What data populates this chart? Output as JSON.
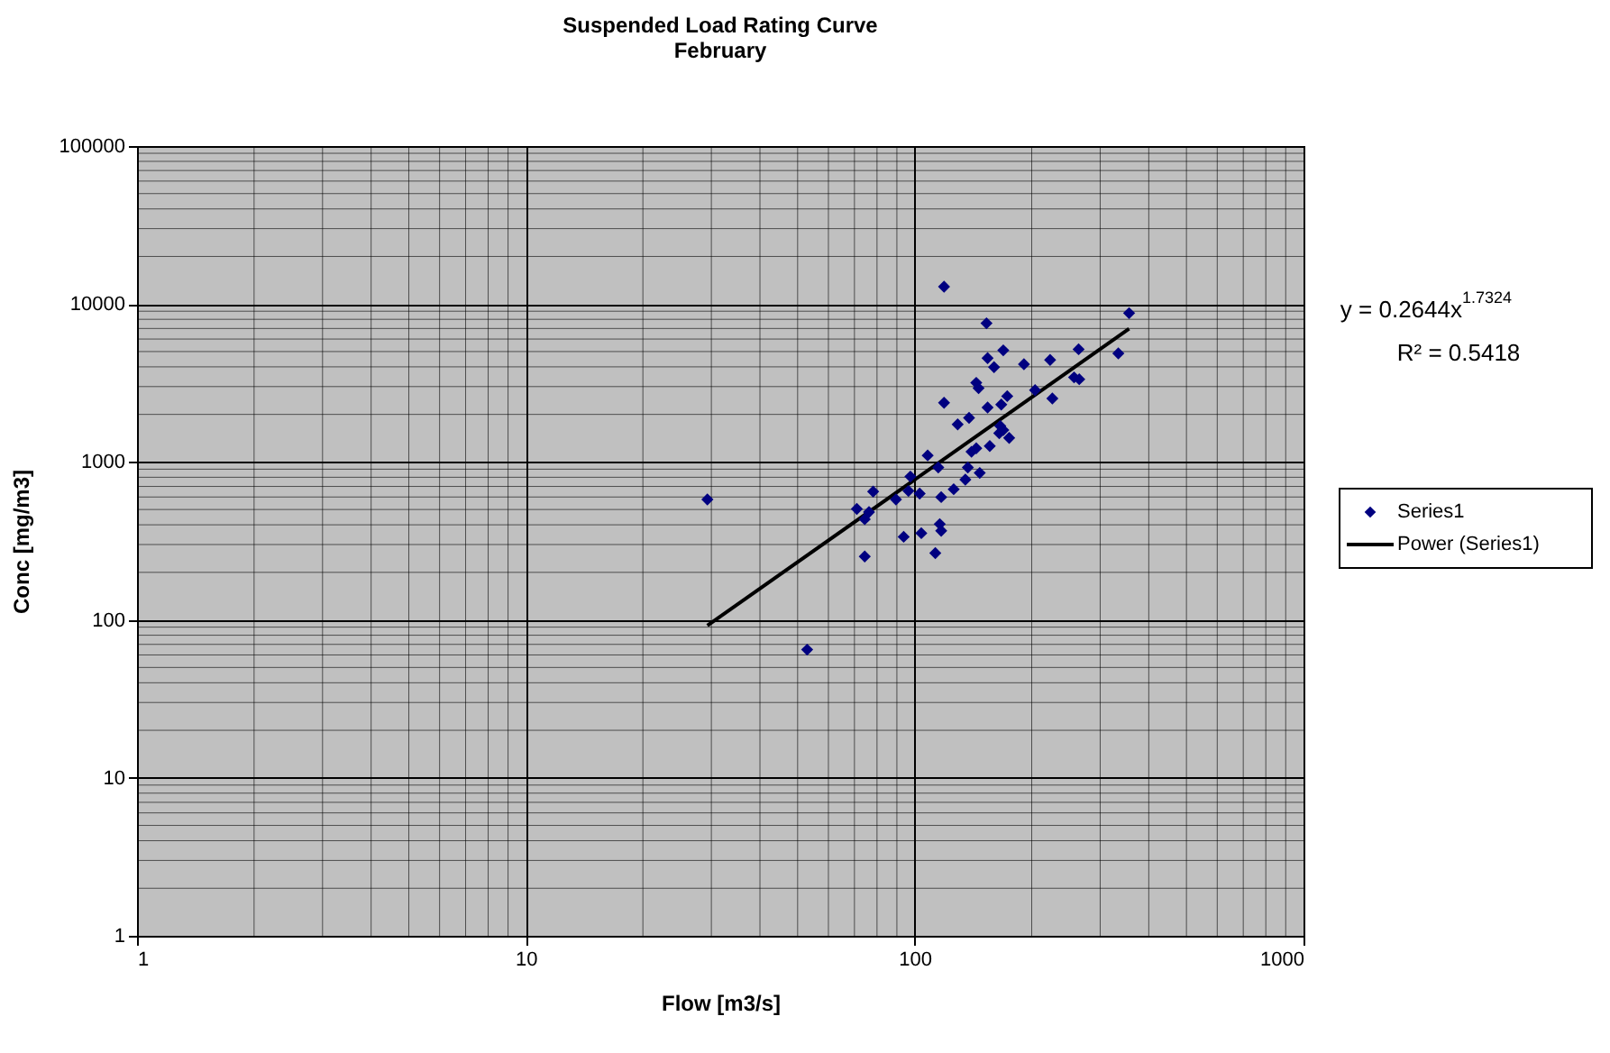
{
  "chart_data": {
    "type": "scatter",
    "title": "Suspended Load Rating Curve",
    "subtitle": "February",
    "xlabel": "Flow [m3/s]",
    "ylabel": "Conc [mg/m3]",
    "log": "xy",
    "grid": true,
    "legend": "right",
    "xlim": [
      1,
      1000
    ],
    "xticks": [
      1,
      10,
      100,
      1000
    ],
    "ylim": [
      1,
      100000
    ],
    "yticks": [
      1,
      10,
      100,
      1000,
      10000,
      100000
    ],
    "annotations": [
      "y = 0.2644x$^{1.7324}$",
      "R² = 0.5418"
    ],
    "series": [
      {
        "name": "Series1",
        "marker": "diamond",
        "color": "#000080",
        "x": [
          29.3,
          52.9,
          119,
          153,
          356,
          169,
          154,
          160,
          191,
          223,
          264,
          334,
          257,
          265,
          144,
          146,
          204,
          226,
          173,
          119,
          154,
          167,
          138,
          129,
          166,
          169,
          175,
          165,
          156,
          144,
          140,
          108,
          115,
          137,
          147,
          135,
          97.5,
          126,
          117,
          103,
          96.4,
          89.5,
          78.2,
          71,
          76.3,
          74.4,
          116,
          117,
          104,
          93.7,
          74.4,
          113
        ],
        "values": [
          579,
          64.8,
          12870,
          7550,
          8750,
          5090,
          4540,
          3980,
          4160,
          4420,
          5170,
          4870,
          3430,
          3340,
          3170,
          2930,
          2850,
          2520,
          2610,
          2370,
          2210,
          2310,
          1900,
          1730,
          1690,
          1590,
          1420,
          1520,
          1260,
          1220,
          1160,
          1100,
          922,
          922,
          852,
          773,
          808,
          672,
          599,
          631,
          655,
          579,
          649,
          504,
          482,
          434,
          404,
          367,
          354,
          336,
          252,
          265
        ]
      },
      {
        "name": "Power (Series1)",
        "type": "line",
        "color": "#000000",
        "marker": "none",
        "line_style": "solid",
        "x": [
          29.3,
          356
        ],
        "values": [
          92,
          6970
        ]
      }
    ]
  }
}
